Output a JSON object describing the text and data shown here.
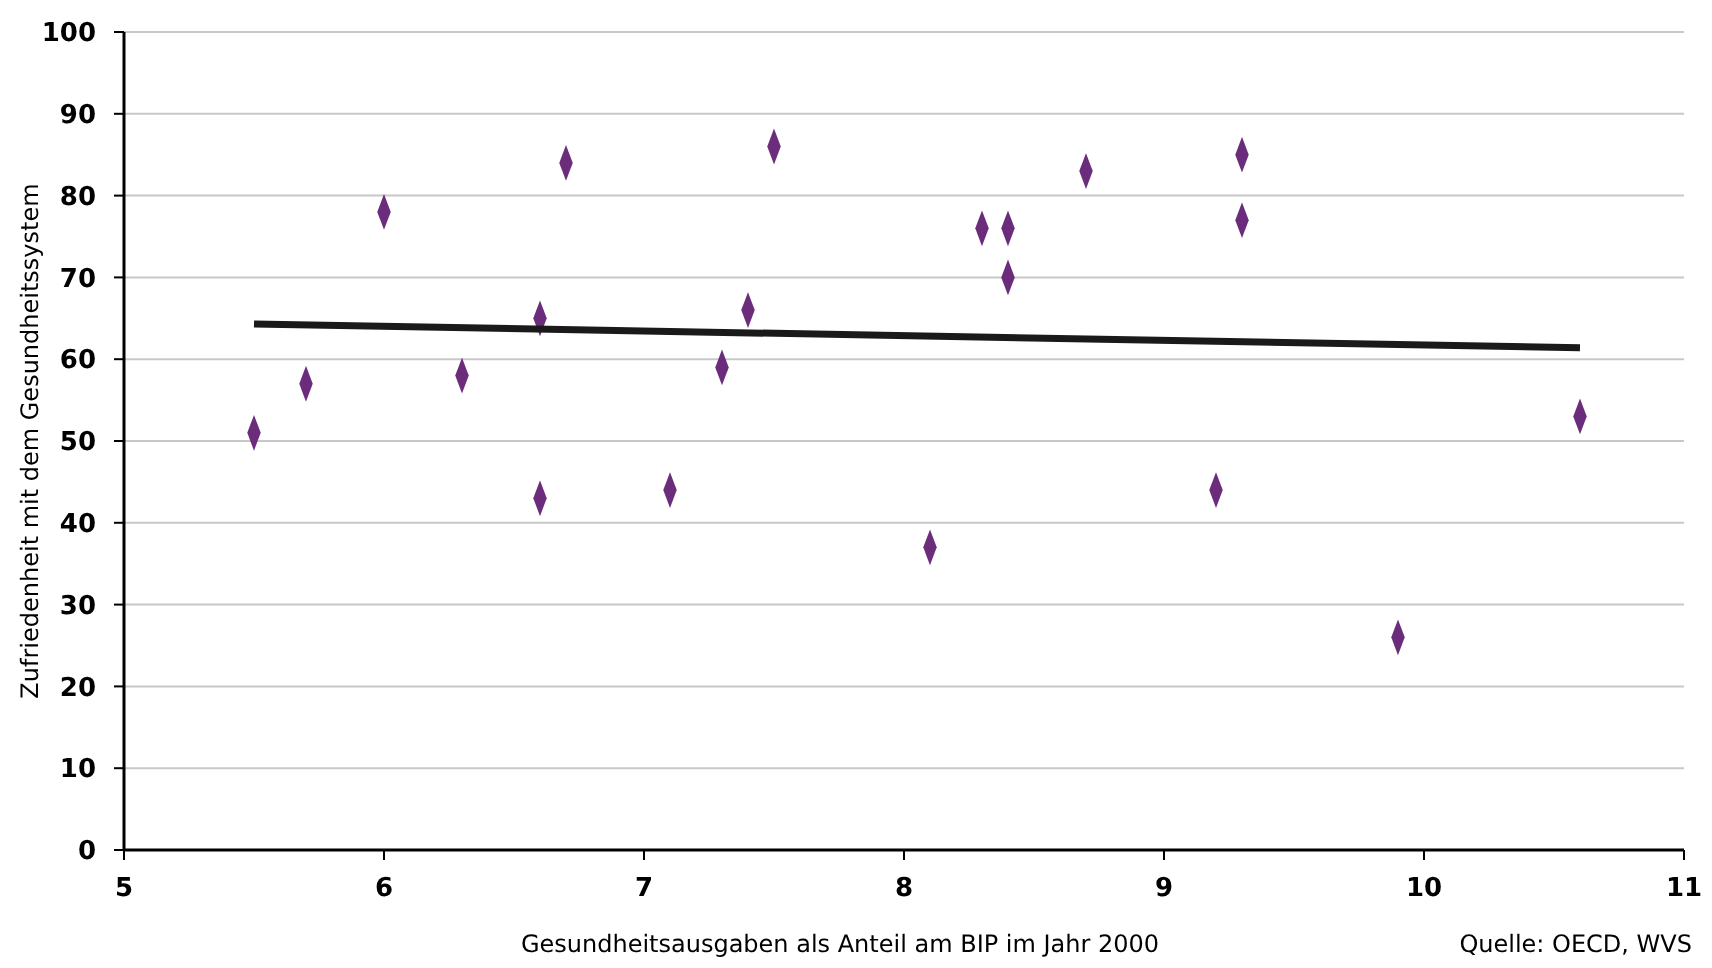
{
  "chart_data": {
    "type": "scatter",
    "xlabel": "Gesundheitsausgaben als Anteil am BIP im Jahr 2000",
    "ylabel": "Zufriedenheit mit dem Gesundheitssystem",
    "annotations": [
      "Quelle: OECD, WVS"
    ],
    "xlim": [
      5,
      11
    ],
    "xticks": [
      5,
      6,
      7,
      8,
      9,
      10,
      11
    ],
    "ylim": [
      0,
      100
    ],
    "yticks": [
      0,
      10,
      20,
      30,
      40,
      50,
      60,
      70,
      80,
      90,
      100
    ],
    "grid": "y",
    "marker": "diamond",
    "series": [
      {
        "color": "#6b2d7b",
        "x": [
          5.5,
          5.7,
          6.0,
          6.3,
          6.6,
          6.6,
          6.7,
          7.1,
          7.3,
          7.4,
          7.5,
          8.1,
          8.3,
          8.4,
          8.4,
          8.7,
          9.2,
          9.3,
          9.3,
          9.9,
          10.6
        ],
        "values": [
          51,
          57,
          78,
          58,
          65,
          43,
          84,
          44,
          59,
          66,
          86,
          37,
          76,
          76,
          70,
          83,
          44,
          85,
          77,
          26,
          53
        ]
      },
      {
        "type": "line",
        "color": "#1a1a1a",
        "line_style": "solid",
        "marker": "none",
        "x": [
          5.5,
          10.6
        ],
        "values": [
          64.3,
          61.4
        ]
      }
    ]
  }
}
